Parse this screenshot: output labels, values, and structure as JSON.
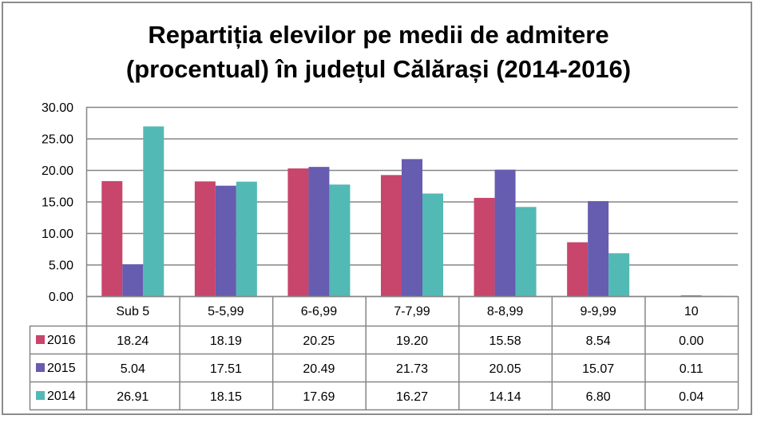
{
  "chart_data": {
    "type": "bar",
    "title_lines": [
      "Repartiția elevilor pe medii de admitere",
      "(procentual) în județul Călărași (2014-2016)"
    ],
    "xlabel": "",
    "ylabel": "",
    "ylim": [
      0,
      30
    ],
    "yticks": [
      "0.00",
      "5.00",
      "10.00",
      "15.00",
      "20.00",
      "25.00",
      "30.00"
    ],
    "ytick_values": [
      0,
      5,
      10,
      15,
      20,
      25,
      30
    ],
    "grid": true,
    "legend_placement": "data-table-left",
    "categories": [
      "Sub 5",
      "5-5,99",
      "6-6,99",
      "7-7,99",
      "8-8,99",
      "9-9,99",
      "10"
    ],
    "series": [
      {
        "name": "2016",
        "color": "#c8456c",
        "values": [
          18.24,
          18.19,
          20.25,
          19.2,
          15.58,
          8.54,
          0.0
        ],
        "labels": [
          "18.24",
          "18.19",
          "20.25",
          "19.20",
          "15.58",
          "8.54",
          "0.00"
        ]
      },
      {
        "name": "2015",
        "color": "#665cb0",
        "values": [
          5.04,
          17.51,
          20.49,
          21.73,
          20.05,
          15.07,
          0.11
        ],
        "labels": [
          "5.04",
          "17.51",
          "20.49",
          "21.73",
          "20.05",
          "15.07",
          "0.11"
        ]
      },
      {
        "name": "2014",
        "color": "#53b9b5",
        "values": [
          26.91,
          18.15,
          17.69,
          16.27,
          14.14,
          6.8,
          0.04
        ],
        "labels": [
          "26.91",
          "18.15",
          "17.69",
          "16.27",
          "14.14",
          "6.80",
          "0.04"
        ]
      }
    ]
  }
}
